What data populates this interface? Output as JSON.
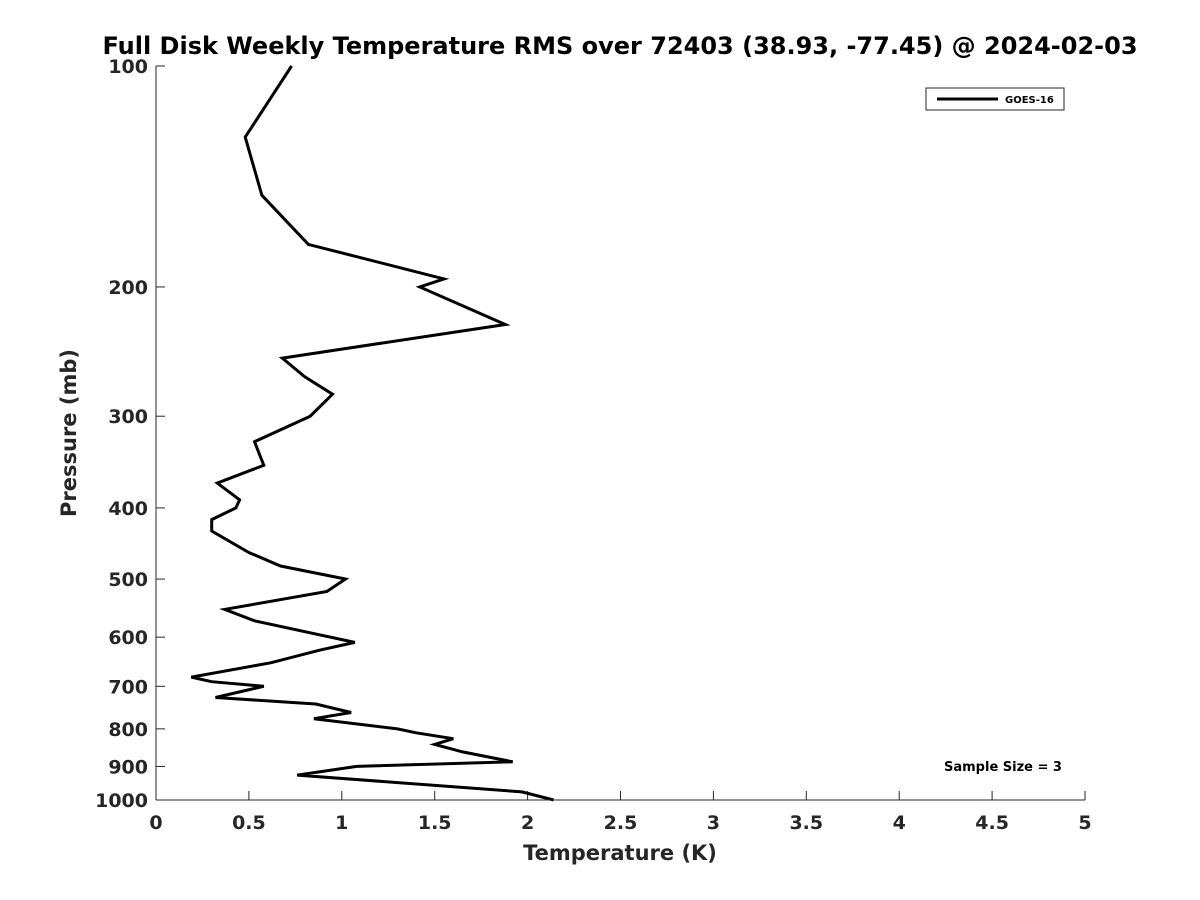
{
  "chart_data": {
    "type": "line",
    "title": "Full Disk Weekly Temperature RMS over 72403 (38.93, -77.45) @ 2024-02-03",
    "xlabel": "Temperature (K)",
    "ylabel": "Pressure (mb)",
    "xlim": [
      0,
      5
    ],
    "ylim": [
      100,
      1000
    ],
    "y_scale": "log",
    "y_reversed": true,
    "x_ticks": [
      "0",
      "0.5",
      "1",
      "1.5",
      "2",
      "2.5",
      "3",
      "3.5",
      "4",
      "4.5",
      "5"
    ],
    "y_ticks": [
      "100",
      "200",
      "300",
      "400",
      "500",
      "600",
      "700",
      "800",
      "900",
      "1000"
    ],
    "grid": false,
    "legend": {
      "placement": "top-right",
      "entries": [
        "GOES-16"
      ]
    },
    "annotation": "Sample Size = 3",
    "series": [
      {
        "name": "GOES-16",
        "color": "#000000",
        "points": [
          [
            0.73,
            100
          ],
          [
            0.48,
            125
          ],
          [
            0.57,
            150
          ],
          [
            0.82,
            175
          ],
          [
            1.55,
            195
          ],
          [
            1.42,
            200
          ],
          [
            1.88,
            225
          ],
          [
            0.68,
            250
          ],
          [
            0.8,
            265
          ],
          [
            0.95,
            280
          ],
          [
            0.83,
            300
          ],
          [
            0.53,
            325
          ],
          [
            0.58,
            350
          ],
          [
            0.33,
            370
          ],
          [
            0.45,
            390
          ],
          [
            0.43,
            400
          ],
          [
            0.3,
            415
          ],
          [
            0.3,
            430
          ],
          [
            0.5,
            460
          ],
          [
            0.67,
            480
          ],
          [
            1.02,
            500
          ],
          [
            0.92,
            520
          ],
          [
            0.37,
            550
          ],
          [
            0.53,
            570
          ],
          [
            1.07,
            610
          ],
          [
            0.88,
            625
          ],
          [
            0.62,
            650
          ],
          [
            0.19,
            680
          ],
          [
            0.3,
            690
          ],
          [
            0.58,
            700
          ],
          [
            0.32,
            725
          ],
          [
            0.86,
            740
          ],
          [
            1.05,
            760
          ],
          [
            0.85,
            775
          ],
          [
            1.3,
            800
          ],
          [
            1.4,
            810
          ],
          [
            1.6,
            825
          ],
          [
            1.5,
            840
          ],
          [
            1.65,
            860
          ],
          [
            1.92,
            887
          ],
          [
            1.08,
            900
          ],
          [
            0.76,
            925
          ],
          [
            1.97,
            975
          ],
          [
            2.14,
            1000
          ]
        ]
      }
    ]
  }
}
